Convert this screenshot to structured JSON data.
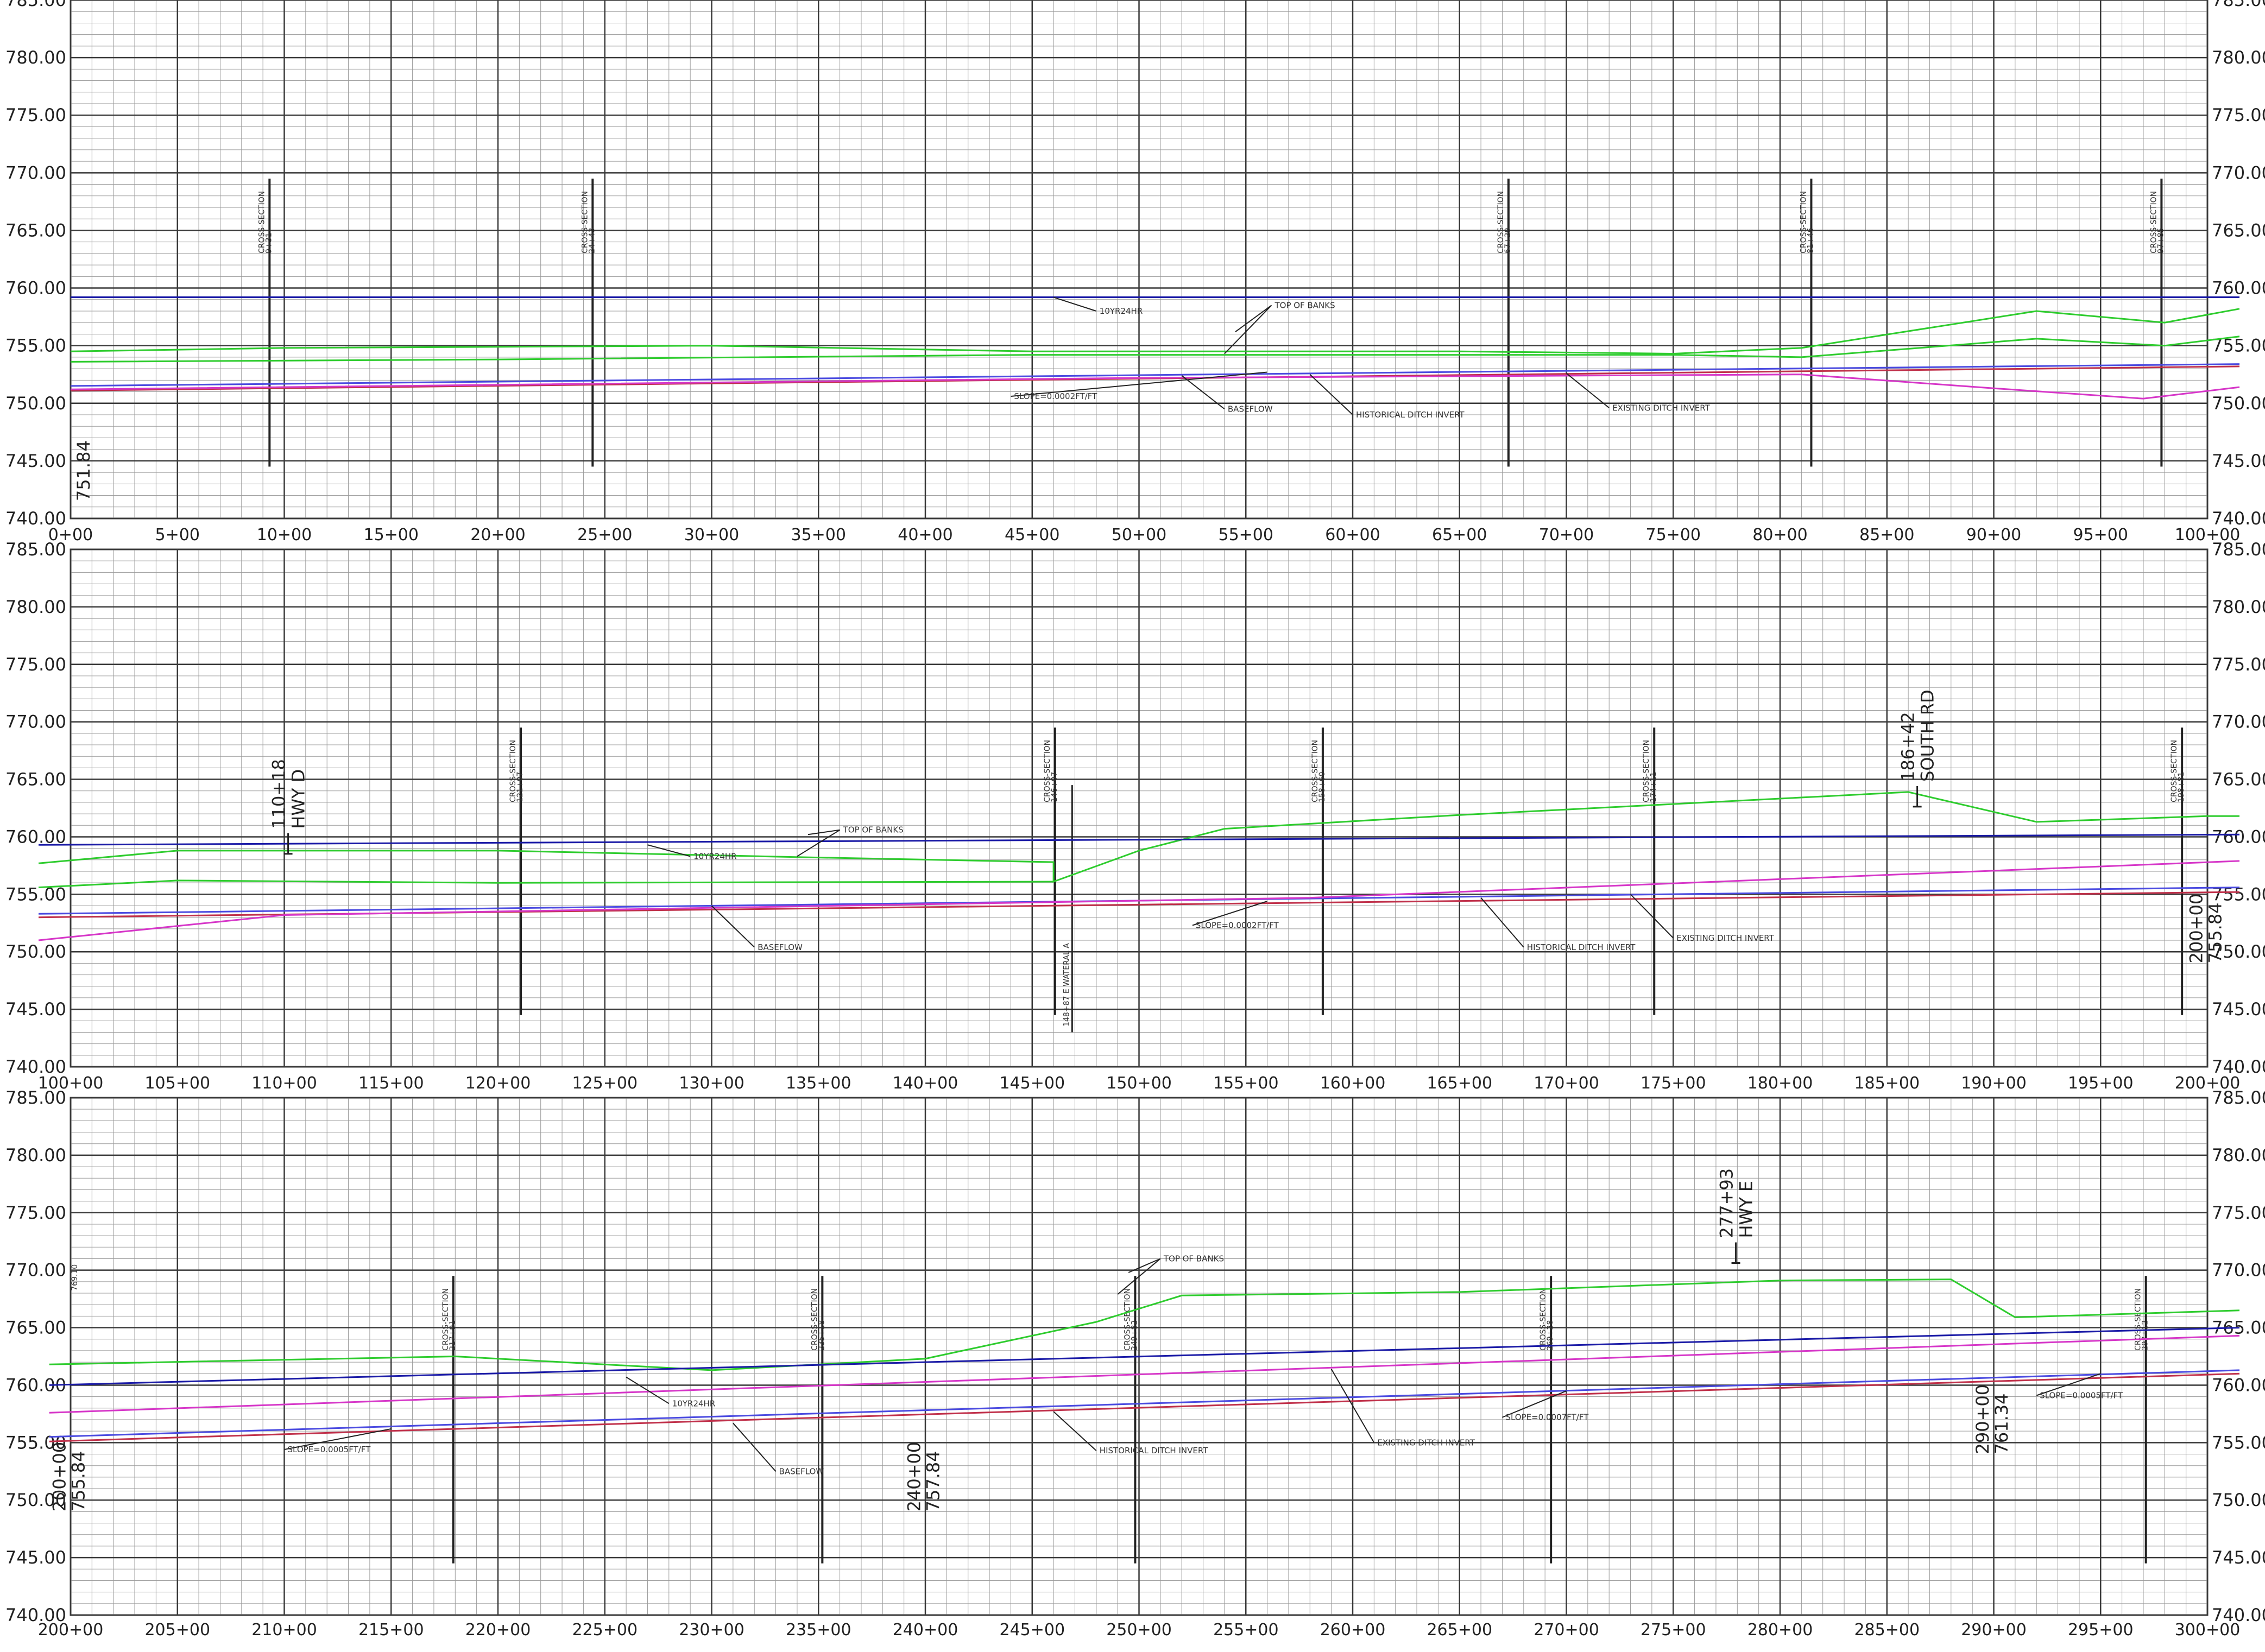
{
  "elevation_labels": [
    "785.00",
    "780.00",
    "775.00",
    "770.00",
    "765.00",
    "760.00",
    "755.00",
    "750.00",
    "745.00",
    "740.00"
  ],
  "colors": {
    "grid_minor": "#9a9a9a",
    "grid_major": "#3a3a3a",
    "top_of_banks": "#2ecc2e",
    "water_surface_10yr": "#1a1aa6",
    "baseflow": "#4a4ae0",
    "historical_invert": "#d636c8",
    "existing_invert": "#c0304a",
    "annotation": "#222222"
  },
  "chart_data": [
    {
      "type": "line",
      "panel": "1",
      "x_unit": "station",
      "xlim": [
        "0+00",
        "100+00"
      ],
      "ylim": [
        740,
        785
      ],
      "stations": [
        "0+00",
        "5+00",
        "10+00",
        "15+00",
        "20+00",
        "25+00",
        "30+00",
        "35+00",
        "40+00",
        "45+00",
        "50+00",
        "55+00",
        "60+00",
        "65+00",
        "70+00",
        "75+00",
        "80+00",
        "85+00",
        "90+00",
        "95+00",
        "100+00"
      ],
      "series": [
        {
          "name": "TOP OF BANKS",
          "color": "#2ecc2e",
          "points": [
            [
              0,
              754.5
            ],
            [
              1000,
              754.8
            ],
            [
              3000,
              755.0
            ],
            [
              4500,
              754.5
            ],
            [
              6500,
              754.5
            ],
            [
              7500,
              754.3
            ],
            [
              8100,
              754.8
            ],
            [
              9200,
              758.0
            ],
            [
              9800,
              757.0
            ],
            [
              10150,
              758.2
            ]
          ]
        },
        {
          "name": "TOP OF BANKS",
          "color": "#2ecc2e",
          "points": [
            [
              0,
              753.6
            ],
            [
              2000,
              753.8
            ],
            [
              4500,
              754.2
            ],
            [
              7500,
              754.2
            ],
            [
              8100,
              754.0
            ],
            [
              9200,
              755.6
            ],
            [
              9800,
              755.0
            ],
            [
              10150,
              755.8
            ]
          ]
        },
        {
          "name": "10YR24HR",
          "color": "#1a1aa6",
          "points": [
            [
              0,
              759.2
            ],
            [
              10150,
              759.2
            ]
          ]
        },
        {
          "name": "BASEFLOW",
          "color": "#4a4ae0",
          "points": [
            [
              0,
              751.5
            ],
            [
              10150,
              753.4
            ]
          ]
        },
        {
          "name": "HISTORICAL DITCH INVERT",
          "color": "#c0304a",
          "points": [
            [
              0,
              751.1
            ],
            [
              10150,
              753.2
            ]
          ]
        },
        {
          "name": "EXISTING DITCH INVERT",
          "color": "#d636c8",
          "points": [
            [
              0,
              751.2
            ],
            [
              5000,
              752.2
            ],
            [
              8100,
              752.5
            ],
            [
              9000,
              751.3
            ],
            [
              9700,
              750.4
            ],
            [
              10150,
              751.4
            ]
          ]
        }
      ],
      "cross_sections": [
        {
          "station": "9+31",
          "x": 931
        },
        {
          "station": "24+43",
          "x": 2443
        },
        {
          "station": "67+29",
          "x": 6729
        },
        {
          "station": "81+46",
          "x": 8146
        },
        {
          "station": "97+85",
          "x": 9785
        }
      ],
      "callouts": [
        {
          "text": "10YR24HR",
          "tip": [
            4600,
            759.2
          ],
          "at": [
            4800,
            758.0
          ]
        },
        {
          "text": "TOP OF BANKS",
          "tip": [
            5400,
            754.3
          ],
          "at": [
            5620,
            758.5
          ]
        },
        {
          "text": "SLOPE=0.0002FT/FT",
          "tip": [
            5600,
            752.7
          ],
          "at": [
            4400,
            750.6
          ]
        },
        {
          "text": "BASEFLOW",
          "tip": [
            5200,
            752.4
          ],
          "at": [
            5400,
            749.5
          ]
        },
        {
          "text": "HISTORICAL DITCH INVERT",
          "tip": [
            5800,
            752.5
          ],
          "at": [
            6000,
            749.0
          ]
        },
        {
          "text": "EXISTING DITCH INVERT",
          "tip": [
            7000,
            752.6
          ],
          "at": [
            7200,
            749.6
          ]
        }
      ],
      "big_labels": [
        {
          "text": "751.84",
          "x": 75,
          "elev": 741.5
        }
      ]
    },
    {
      "type": "line",
      "panel": "2",
      "x_unit": "station",
      "xlim": [
        "100+00",
        "200+00"
      ],
      "ylim": [
        740,
        785
      ],
      "stations": [
        "100+00",
        "105+00",
        "110+00",
        "115+00",
        "120+00",
        "125+00",
        "130+00",
        "135+00",
        "140+00",
        "145+00",
        "150+00",
        "155+00",
        "160+00",
        "165+00",
        "170+00",
        "175+00",
        "180+00",
        "185+00",
        "190+00",
        "195+00",
        "200+00"
      ],
      "series": [
        {
          "name": "TOP OF BANKS",
          "color": "#2ecc2e",
          "points": [
            [
              9850,
              757.7
            ],
            [
              10500,
              758.8
            ],
            [
              12000,
              758.8
            ],
            [
              13500,
              758.2
            ],
            [
              14600,
              757.8
            ],
            [
              14600,
              756.1
            ],
            [
              15000,
              758.8
            ],
            [
              15400,
              760.7
            ],
            [
              16500,
              761.9
            ],
            [
              18600,
              763.9
            ],
            [
              19200,
              761.3
            ],
            [
              20000,
              761.8
            ],
            [
              20150,
              761.8
            ]
          ]
        },
        {
          "name": "TOP OF BANKS",
          "color": "#2ecc2e",
          "points": [
            [
              9850,
              755.6
            ],
            [
              10500,
              756.2
            ],
            [
              12000,
              756.0
            ],
            [
              14600,
              756.1
            ]
          ]
        },
        {
          "name": "10YR24HR",
          "color": "#1a1aa6",
          "points": [
            [
              9850,
              759.3
            ],
            [
              20150,
              760.2
            ]
          ]
        },
        {
          "name": "BASEFLOW",
          "color": "#4a4ae0",
          "points": [
            [
              9850,
              753.3
            ],
            [
              20150,
              755.6
            ]
          ]
        },
        {
          "name": "HISTORICAL DITCH INVERT",
          "color": "#c0304a",
          "points": [
            [
              9850,
              753.0
            ],
            [
              20150,
              755.2
            ]
          ]
        },
        {
          "name": "EXISTING DITCH INVERT",
          "color": "#d636c8",
          "points": [
            [
              9850,
              751.0
            ],
            [
              11000,
              753.2
            ],
            [
              15800,
              754.7
            ],
            [
              20150,
              757.9
            ]
          ]
        }
      ],
      "cross_sections": [
        {
          "station": "121+07",
          "x": 12107
        },
        {
          "station": "146+07",
          "x": 14607
        },
        {
          "station": "158+60",
          "x": 15860
        },
        {
          "station": "174+11",
          "x": 17411
        },
        {
          "station": "198+81",
          "x": 19881
        }
      ],
      "lateral": {
        "text": "148+87 E WATERAL A",
        "x": 14687
      },
      "callouts": [
        {
          "text": "10YR24HR",
          "tip": [
            12700,
            759.3
          ],
          "at": [
            12900,
            758.3
          ]
        },
        {
          "text": "TOP OF BANKS",
          "tip": [
            13400,
            758.3
          ],
          "at": [
            13600,
            760.6
          ]
        },
        {
          "text": "BASEFLOW",
          "tip": [
            13000,
            754.0
          ],
          "at": [
            13200,
            750.4
          ]
        },
        {
          "text": "SLOPE=0.0002FT/FT",
          "tip": [
            15600,
            754.4
          ],
          "at": [
            15250,
            752.3
          ]
        },
        {
          "text": "HISTORICAL DITCH INVERT",
          "tip": [
            16600,
            754.7
          ],
          "at": [
            16800,
            750.4
          ]
        },
        {
          "text": "EXISTING DITCH INVERT",
          "tip": [
            17300,
            755.0
          ],
          "at": [
            17500,
            751.2
          ]
        }
      ],
      "road_markers": [
        {
          "station": "110+18",
          "name": "HWY D",
          "x": 11018,
          "elev": 758.9
        },
        {
          "station": "186+42",
          "name": "SOUTH RD",
          "x": 18642,
          "elev": 763.0
        }
      ],
      "big_labels": [
        {
          "text": "200+00",
          "x": 19950,
          "elev": 749.0
        },
        {
          "text": "755.84",
          "x": 20040,
          "elev": 749.0
        }
      ]
    },
    {
      "type": "line",
      "panel": "3",
      "x_unit": "station",
      "xlim": [
        "200+00",
        "300+00"
      ],
      "ylim": [
        740,
        785
      ],
      "stations": [
        "200+00",
        "205+00",
        "210+00",
        "215+00",
        "220+00",
        "225+00",
        "230+00",
        "235+00",
        "240+00",
        "245+00",
        "250+00",
        "255+00",
        "260+00",
        "265+00",
        "270+00",
        "275+00",
        "280+00",
        "285+00",
        "290+00",
        "295+00",
        "300+00"
      ],
      "series": [
        {
          "name": "TOP OF BANKS",
          "color": "#2ecc2e",
          "points": [
            [
              19900,
              761.8
            ],
            [
              21800,
              762.5
            ],
            [
              23000,
              761.3
            ],
            [
              24000,
              762.3
            ],
            [
              24800,
              765.5
            ],
            [
              25200,
              767.8
            ],
            [
              26500,
              768.1
            ],
            [
              28000,
              769.1
            ],
            [
              28800,
              769.2
            ],
            [
              29100,
              765.9
            ],
            [
              30150,
              766.5
            ]
          ]
        },
        {
          "name": "10YR24HR",
          "color": "#1a1aa6",
          "points": [
            [
              19900,
              760.0
            ],
            [
              30150,
              765.0
            ]
          ]
        },
        {
          "name": "BASEFLOW",
          "color": "#4a4ae0",
          "points": [
            [
              19900,
              755.5
            ],
            [
              30150,
              761.3
            ]
          ]
        },
        {
          "name": "HISTORICAL DITCH INVERT",
          "color": "#c0304a",
          "points": [
            [
              19900,
              755.1
            ],
            [
              30150,
              761.0
            ]
          ]
        },
        {
          "name": "EXISTING DITCH INVERT",
          "color": "#d636c8",
          "points": [
            [
              19900,
              757.6
            ],
            [
              30150,
              764.3
            ]
          ]
        }
      ],
      "cross_sections": [
        {
          "station": "217+91",
          "x": 21791
        },
        {
          "station": "235+18",
          "x": 23518
        },
        {
          "station": "249+82",
          "x": 24982
        },
        {
          "station": "269+28",
          "x": 26928
        },
        {
          "station": "297+12",
          "x": 29712
        }
      ],
      "callouts": [
        {
          "text": "TOP OF BANKS",
          "tip": [
            24900,
            767.9
          ],
          "at": [
            25100,
            771.0
          ]
        },
        {
          "text": "10YR24HR",
          "tip": [
            22600,
            760.7
          ],
          "at": [
            22800,
            758.4
          ]
        },
        {
          "text": "SLOPE=0.0005FT/FT",
          "tip": [
            21500,
            756.2
          ],
          "at": [
            21000,
            754.4
          ]
        },
        {
          "text": "BASEFLOW",
          "tip": [
            23100,
            756.7
          ],
          "at": [
            23300,
            752.5
          ]
        },
        {
          "text": "HISTORICAL DITCH INVERT",
          "tip": [
            24600,
            757.7
          ],
          "at": [
            24800,
            754.3
          ]
        },
        {
          "text": "EXISTING DITCH INVERT",
          "tip": [
            25900,
            761.4
          ],
          "at": [
            26100,
            755.0
          ]
        },
        {
          "text": "SLOPE=0.0007FT/FT",
          "tip": [
            27000,
            759.5
          ],
          "at": [
            26700,
            757.2
          ]
        },
        {
          "text": "SLOPE=0.0005FT/FT",
          "tip": [
            29500,
            761.0
          ],
          "at": [
            29200,
            759.1
          ]
        }
      ],
      "road_markers": [
        {
          "station": "277+93",
          "name": "HWY E",
          "x": 27793,
          "elev": 771.0
        }
      ],
      "big_labels": [
        {
          "text": "200+00",
          "x": 19950,
          "elev": 749.0
        },
        {
          "text": "755.84",
          "x": 20040,
          "elev": 749.0
        },
        {
          "text": "240+00",
          "x": 23950,
          "elev": 749.0
        },
        {
          "text": "757.84",
          "x": 24040,
          "elev": 749.0
        },
        {
          "text": "290+00",
          "x": 28950,
          "elev": 754.0
        },
        {
          "text": "761.34",
          "x": 29040,
          "elev": 754.0
        }
      ],
      "edge_label": {
        "text": "769.10",
        "elev": 768.2
      }
    }
  ]
}
